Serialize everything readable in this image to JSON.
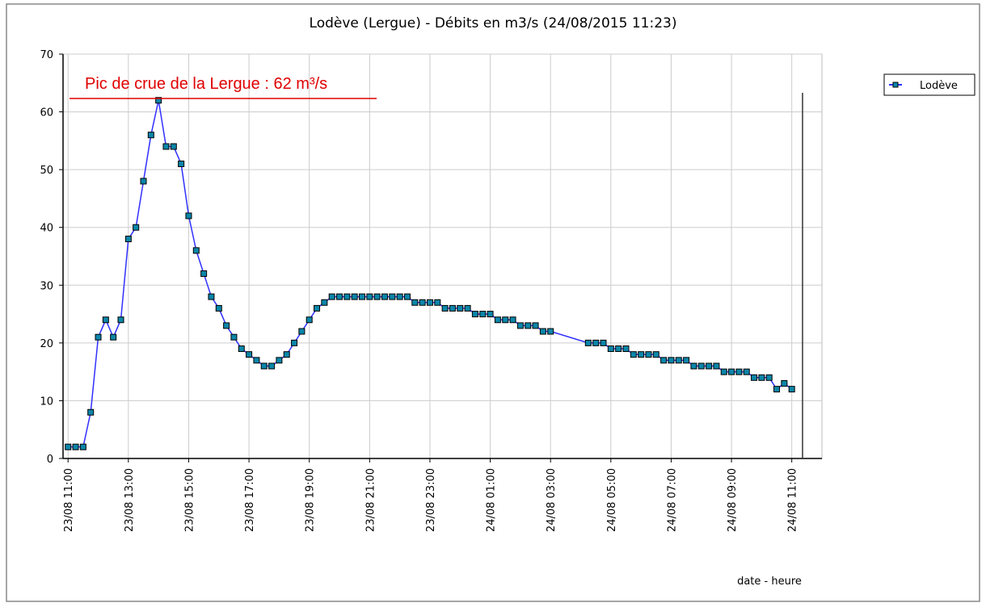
{
  "chart_data": {
    "type": "line",
    "title": "Lodève (Lergue) - Débits en m3/s (24/08/2015 11:23)",
    "annotation": "Pic de crue de la Lergue : 62 m³/s",
    "x_label": "date - heure",
    "x": [
      "23/08 11:00",
      "23/08 11:15",
      "23/08 11:30",
      "23/08 11:45",
      "23/08 12:00",
      "23/08 12:15",
      "23/08 12:30",
      "23/08 12:45",
      "23/08 13:00",
      "23/08 13:15",
      "23/08 13:30",
      "23/08 13:45",
      "23/08 14:00",
      "23/08 14:15",
      "23/08 14:30",
      "23/08 14:45",
      "23/08 15:00",
      "23/08 15:15",
      "23/08 15:30",
      "23/08 15:45",
      "23/08 16:00",
      "23/08 16:15",
      "23/08 16:30",
      "23/08 16:45",
      "23/08 17:00",
      "23/08 17:15",
      "23/08 17:30",
      "23/08 17:45",
      "23/08 18:00",
      "23/08 18:15",
      "23/08 18:30",
      "23/08 18:45",
      "23/08 19:00",
      "23/08 19:15",
      "23/08 19:30",
      "23/08 19:45",
      "23/08 20:00",
      "23/08 20:15",
      "23/08 20:30",
      "23/08 20:45",
      "23/08 21:00",
      "23/08 21:15",
      "23/08 21:30",
      "23/08 21:45",
      "23/08 22:00",
      "23/08 22:15",
      "23/08 22:30",
      "23/08 22:45",
      "23/08 23:00",
      "23/08 23:15",
      "23/08 23:30",
      "23/08 23:45",
      "24/08 00:00",
      "24/08 00:15",
      "24/08 00:30",
      "24/08 00:45",
      "24/08 01:00",
      "24/08 01:15",
      "24/08 01:30",
      "24/08 01:45",
      "24/08 02:00",
      "24/08 02:15",
      "24/08 02:30",
      "24/08 02:45",
      "24/08 03:00",
      "24/08 04:15",
      "24/08 04:30",
      "24/08 04:45",
      "24/08 05:00",
      "24/08 05:15",
      "24/08 05:30",
      "24/08 05:45",
      "24/08 06:00",
      "24/08 06:15",
      "24/08 06:30",
      "24/08 06:45",
      "24/08 07:00",
      "24/08 07:15",
      "24/08 07:30",
      "24/08 07:45",
      "24/08 08:00",
      "24/08 08:15",
      "24/08 08:30",
      "24/08 08:45",
      "24/08 09:00",
      "24/08 09:15",
      "24/08 09:30",
      "24/08 09:45",
      "24/08 10:00",
      "24/08 10:15",
      "24/08 10:30",
      "24/08 10:45",
      "24/08 11:00"
    ],
    "series": [
      {
        "name": "Lodève",
        "color": "#3030ff",
        "marker_color": "#0b86a8",
        "values": [
          2,
          2,
          2,
          8,
          21,
          24,
          21,
          24,
          38,
          40,
          48,
          56,
          62,
          54,
          54,
          51,
          42,
          36,
          32,
          28,
          26,
          23,
          21,
          19,
          18,
          17,
          16,
          16,
          17,
          18,
          20,
          22,
          24,
          26,
          27,
          28,
          28,
          28,
          28,
          28,
          28,
          28,
          28,
          28,
          28,
          28,
          27,
          27,
          27,
          27,
          26,
          26,
          26,
          26,
          25,
          25,
          25,
          24,
          24,
          24,
          23,
          23,
          23,
          22,
          22,
          20,
          20,
          20,
          19,
          19,
          19,
          18,
          18,
          18,
          18,
          17,
          17,
          17,
          17,
          16,
          16,
          16,
          16,
          15,
          15,
          15,
          15,
          14,
          14,
          14,
          12,
          13,
          12
        ]
      }
    ],
    "xlim": [
      "23/08 10:50",
      "24/08 12:00"
    ],
    "xticks": [
      "23/08 11:00",
      "23/08 13:00",
      "23/08 15:00",
      "23/08 17:00",
      "23/08 19:00",
      "23/08 21:00",
      "23/08 23:00",
      "24/08 01:00",
      "24/08 03:00",
      "24/08 05:00",
      "24/08 07:00",
      "24/08 09:00",
      "24/08 11:00"
    ],
    "ylim": [
      0,
      70
    ],
    "yticks": [
      0,
      10,
      20,
      30,
      40,
      50,
      60,
      70
    ],
    "grid": true,
    "legend": "right"
  }
}
